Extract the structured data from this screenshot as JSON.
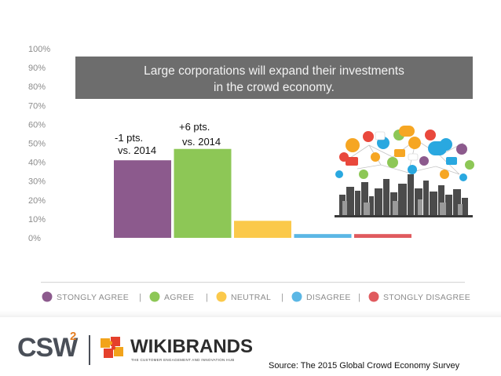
{
  "banner": {
    "line1": "Large corporations will expand their investments",
    "line2": "in the crowd economy."
  },
  "annotations": {
    "a1_line1": "-1 pts.",
    "a1_line2": "vs. 2014",
    "a2_line1": "+6 pts.",
    "a2_line2": "vs. 2014"
  },
  "legend": {
    "separator": "|"
  },
  "footer": {
    "logo_csw": "CSW",
    "logo_csw_sup": "2",
    "logo_wiki": "WIKIBRANDS",
    "logo_wiki_tagline": "THE CUSTOMER ENGAGEMENT AND INNOVATION HUB",
    "source": "Source: The 2015 Global Crowd Economy Survey"
  },
  "colors": {
    "strongly_agree": "#8c5a8d",
    "agree": "#8dc756",
    "neutral": "#fbc94b",
    "disagree": "#5bb7e5",
    "strongly_disagree": "#e05a5e",
    "banner": "#6d6d6d"
  },
  "chart_data": {
    "type": "bar",
    "categories": [
      "STONGLY AGREE",
      "AGREE",
      "NEUTRAL",
      "DISAGREE",
      "STONGLY DISAGREE"
    ],
    "values": [
      41,
      47,
      9,
      2,
      2
    ],
    "ytick_labels": [
      "0%",
      "10%",
      "20%",
      "30%",
      "40%",
      "50%",
      "60%",
      "70%",
      "80%",
      "90%",
      "100%"
    ],
    "ylim": [
      0,
      100
    ],
    "legend_position": "bottom",
    "grid": false
  }
}
